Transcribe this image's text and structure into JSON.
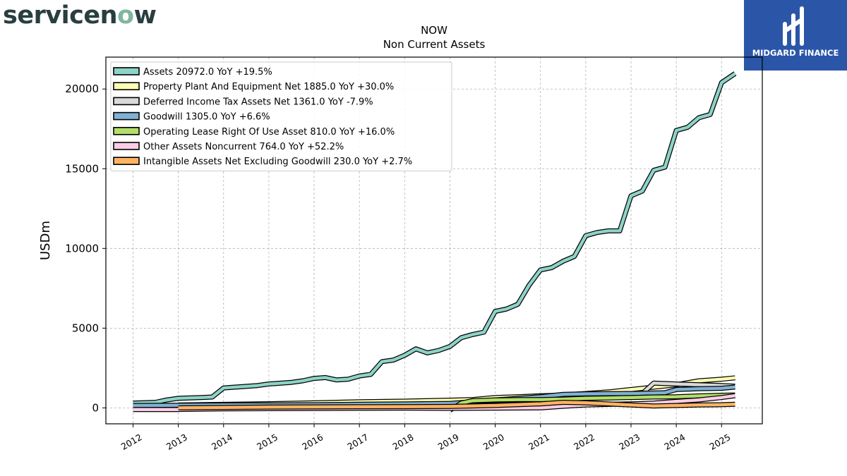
{
  "brand": {
    "logo_text_before": "servicen",
    "logo_text_o": "o",
    "logo_text_after": "w"
  },
  "watermark": {
    "text": "MIDGARD FINANCE"
  },
  "chart_data": {
    "type": "area",
    "title": "NOW",
    "subtitle": "Non Current  Assets",
    "ylabel": "USDm",
    "xlabel": "",
    "xlim": [
      2011.4,
      2025.9
    ],
    "ylim": [
      -1000,
      22000
    ],
    "yticks": [
      0,
      5000,
      10000,
      15000,
      20000
    ],
    "xticks": [
      2012,
      2013,
      2014,
      2015,
      2016,
      2017,
      2018,
      2019,
      2020,
      2021,
      2022,
      2023,
      2024,
      2025
    ],
    "grid": true,
    "legend_position": "top-left",
    "series": [
      {
        "name": "Assets  20972.0 YoY +19.5%",
        "color": "#8dd3c7",
        "points": [
          [
            2012.0,
            300
          ],
          [
            2012.5,
            350
          ],
          [
            2012.75,
            500
          ],
          [
            2013.0,
            600
          ],
          [
            2013.5,
            650
          ],
          [
            2013.75,
            680
          ],
          [
            2014.0,
            1250
          ],
          [
            2014.25,
            1300
          ],
          [
            2014.75,
            1400
          ],
          [
            2015.0,
            1500
          ],
          [
            2015.5,
            1600
          ],
          [
            2015.75,
            1700
          ],
          [
            2016.0,
            1850
          ],
          [
            2016.25,
            1900
          ],
          [
            2016.5,
            1750
          ],
          [
            2016.75,
            1800
          ],
          [
            2017.0,
            2000
          ],
          [
            2017.25,
            2100
          ],
          [
            2017.5,
            2900
          ],
          [
            2017.75,
            3000
          ],
          [
            2018.0,
            3300
          ],
          [
            2018.25,
            3700
          ],
          [
            2018.5,
            3450
          ],
          [
            2018.75,
            3600
          ],
          [
            2019.0,
            3850
          ],
          [
            2019.25,
            4400
          ],
          [
            2019.5,
            4600
          ],
          [
            2019.75,
            4750
          ],
          [
            2020.0,
            6050
          ],
          [
            2020.25,
            6200
          ],
          [
            2020.5,
            6500
          ],
          [
            2020.75,
            7700
          ],
          [
            2021.0,
            8650
          ],
          [
            2021.25,
            8800
          ],
          [
            2021.5,
            9200
          ],
          [
            2021.75,
            9500
          ],
          [
            2022.0,
            10800
          ],
          [
            2022.25,
            11000
          ],
          [
            2022.5,
            11100
          ],
          [
            2022.75,
            11100
          ],
          [
            2023.0,
            13300
          ],
          [
            2023.25,
            13600
          ],
          [
            2023.5,
            14900
          ],
          [
            2023.75,
            15100
          ],
          [
            2024.0,
            17400
          ],
          [
            2024.25,
            17600
          ],
          [
            2024.5,
            18200
          ],
          [
            2024.75,
            18400
          ],
          [
            2025.0,
            20400
          ],
          [
            2025.3,
            20972
          ]
        ]
      },
      {
        "name": "Property Plant And Equipment Net  1885.0 YoY +30.0%",
        "color": "#ffffb3",
        "points": [
          [
            2013.0,
            180
          ],
          [
            2014.0,
            220
          ],
          [
            2015.0,
            260
          ],
          [
            2016.0,
            320
          ],
          [
            2017.0,
            380
          ],
          [
            2018.0,
            420
          ],
          [
            2019.0,
            480
          ],
          [
            2019.5,
            520
          ],
          [
            2020.0,
            650
          ],
          [
            2020.5,
            700
          ],
          [
            2021.0,
            760
          ],
          [
            2021.5,
            800
          ],
          [
            2022.0,
            900
          ],
          [
            2022.5,
            1000
          ],
          [
            2023.0,
            1150
          ],
          [
            2023.5,
            1300
          ],
          [
            2024.0,
            1450
          ],
          [
            2024.5,
            1700
          ],
          [
            2025.0,
            1800
          ],
          [
            2025.3,
            1885
          ]
        ]
      },
      {
        "name": "Deferred Income Tax Assets Net  1361.0 YoY -7.9%",
        "color": "#d9d9d9",
        "points": [
          [
            2012.0,
            40
          ],
          [
            2014.0,
            60
          ],
          [
            2016.0,
            80
          ],
          [
            2018.0,
            100
          ],
          [
            2019.0,
            120
          ],
          [
            2020.0,
            200
          ],
          [
            2021.0,
            300
          ],
          [
            2022.0,
            600
          ],
          [
            2023.0,
            800
          ],
          [
            2023.25,
            900
          ],
          [
            2023.5,
            1550
          ],
          [
            2024.0,
            1500
          ],
          [
            2024.5,
            1450
          ],
          [
            2025.0,
            1400
          ],
          [
            2025.3,
            1361
          ]
        ]
      },
      {
        "name": "Goodwill  1305.0 YoY +6.6%",
        "color": "#80b1d3",
        "points": [
          [
            2012.0,
            150
          ],
          [
            2014.0,
            180
          ],
          [
            2016.0,
            200
          ],
          [
            2018.0,
            250
          ],
          [
            2019.0,
            280
          ],
          [
            2020.0,
            500
          ],
          [
            2021.0,
            700
          ],
          [
            2021.5,
            850
          ],
          [
            2022.0,
            880
          ],
          [
            2023.0,
            900
          ],
          [
            2023.75,
            950
          ],
          [
            2024.0,
            1150
          ],
          [
            2024.5,
            1200
          ],
          [
            2025.0,
            1230
          ],
          [
            2025.3,
            1305
          ]
        ]
      },
      {
        "name": "Operating Lease Right Of Use Asset  810.0 YoY +16.0%",
        "color": "#b3de69",
        "points": [
          [
            2019.0,
            -150
          ],
          [
            2019.25,
            300
          ],
          [
            2019.5,
            450
          ],
          [
            2020.0,
            500
          ],
          [
            2020.5,
            520
          ],
          [
            2021.0,
            520
          ],
          [
            2021.5,
            550
          ],
          [
            2022.0,
            600
          ],
          [
            2022.5,
            620
          ],
          [
            2023.0,
            650
          ],
          [
            2023.5,
            680
          ],
          [
            2024.0,
            700
          ],
          [
            2024.5,
            750
          ],
          [
            2025.0,
            790
          ],
          [
            2025.3,
            810
          ]
        ]
      },
      {
        "name": "Other Assets Noncurrent  764.0 YoY +52.2%",
        "color": "#fccde5",
        "points": [
          [
            2012.0,
            -100
          ],
          [
            2013.0,
            -100
          ],
          [
            2014.0,
            -60
          ],
          [
            2016.0,
            -40
          ],
          [
            2018.0,
            -20
          ],
          [
            2019.0,
            -30
          ],
          [
            2020.0,
            -20
          ],
          [
            2021.0,
            0
          ],
          [
            2021.5,
            100
          ],
          [
            2022.0,
            180
          ],
          [
            2023.0,
            250
          ],
          [
            2023.5,
            300
          ],
          [
            2024.0,
            400
          ],
          [
            2024.5,
            500
          ],
          [
            2025.0,
            650
          ],
          [
            2025.3,
            764
          ]
        ]
      },
      {
        "name": "Intangible Assets Net Excluding Goodwill  230.0 YoY +2.7%",
        "color": "#fdb462",
        "points": [
          [
            2013.0,
            0
          ],
          [
            2014.0,
            30
          ],
          [
            2015.0,
            50
          ],
          [
            2016.0,
            60
          ],
          [
            2017.0,
            70
          ],
          [
            2018.0,
            80
          ],
          [
            2019.0,
            90
          ],
          [
            2020.0,
            150
          ],
          [
            2021.0,
            250
          ],
          [
            2021.5,
            350
          ],
          [
            2022.0,
            320
          ],
          [
            2022.5,
            250
          ],
          [
            2023.0,
            180
          ],
          [
            2023.5,
            120
          ],
          [
            2024.0,
            150
          ],
          [
            2024.5,
            180
          ],
          [
            2025.0,
            200
          ],
          [
            2025.3,
            230
          ]
        ]
      }
    ]
  }
}
